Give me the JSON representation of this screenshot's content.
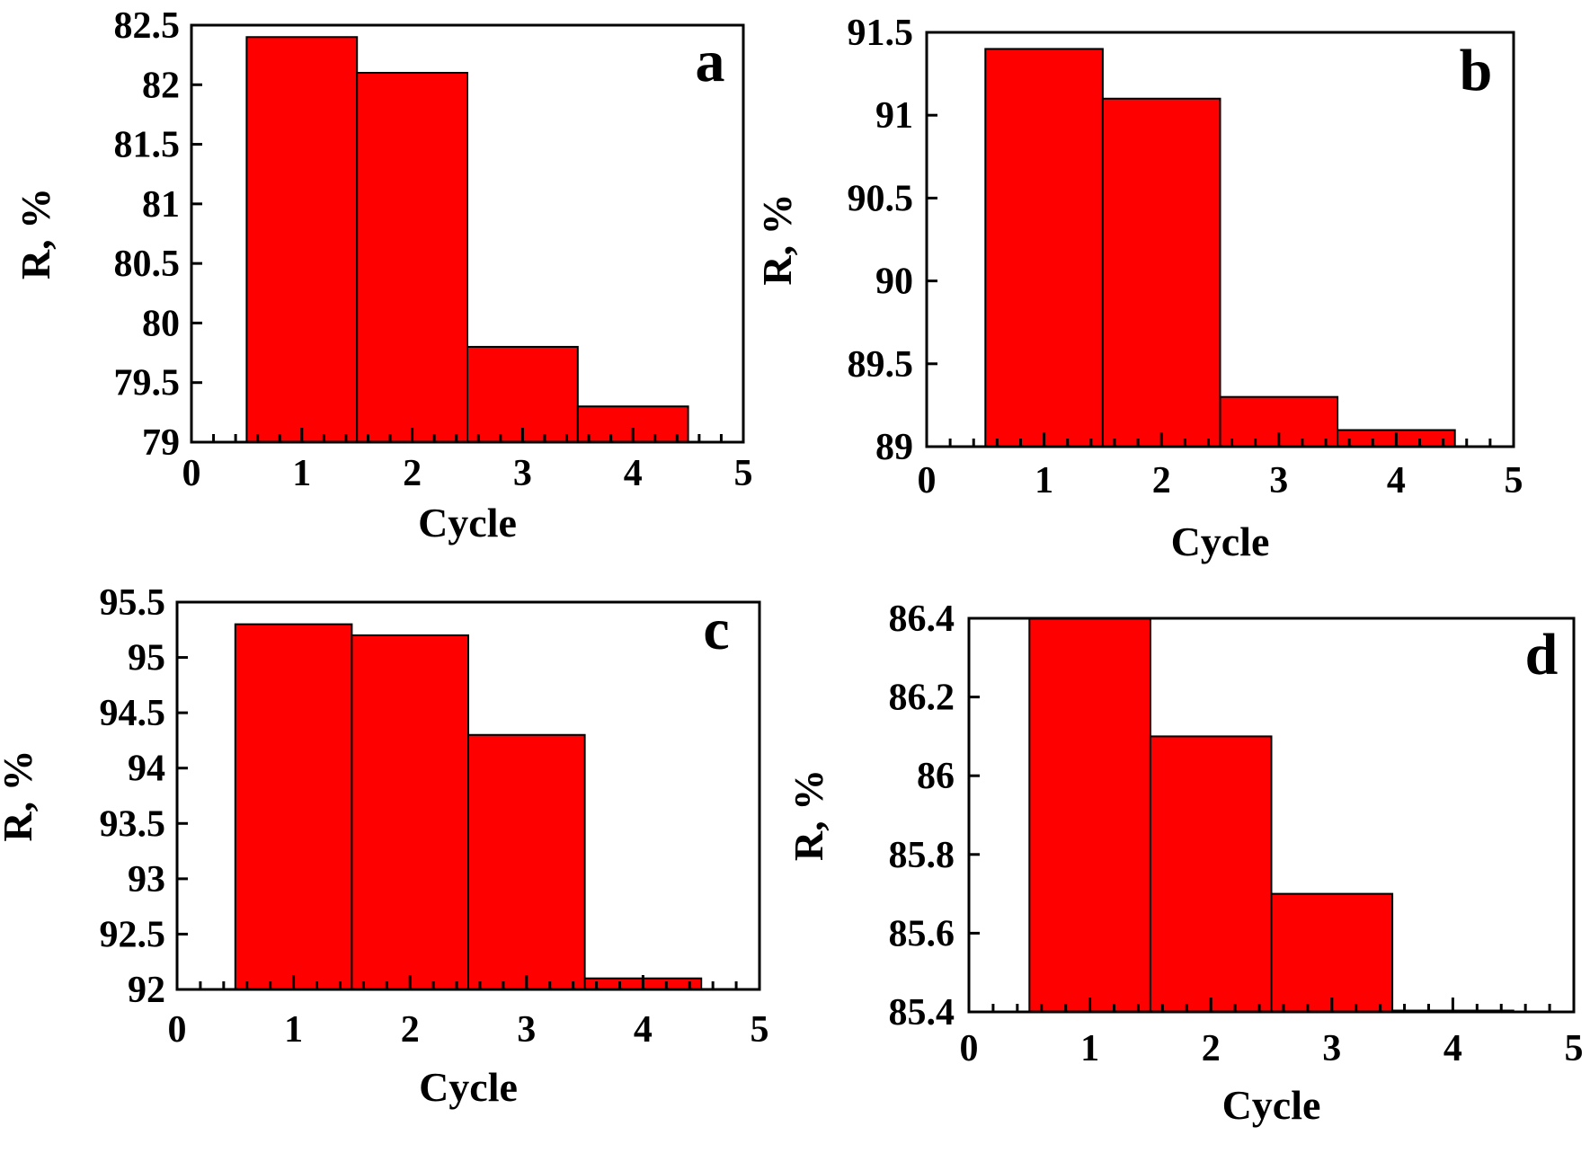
{
  "colors": {
    "bar_fill": "#ff0000",
    "bar_edge": "#000000",
    "axes": "#000000"
  },
  "chart_data": [
    {
      "type": "bar",
      "panel": "a",
      "xlabel": "Cycle",
      "ylabel": "R, %",
      "categories": [
        1,
        2,
        3,
        4
      ],
      "values": [
        82.4,
        82.1,
        79.8,
        79.3
      ],
      "xlim": [
        0,
        5
      ],
      "ylim": [
        79,
        82.5
      ],
      "xticks": [
        0,
        1,
        2,
        3,
        4,
        5
      ],
      "xtick_labels": [
        "0",
        "1",
        "2",
        "3",
        "4",
        "5"
      ],
      "yticks": [
        79,
        79.5,
        80,
        80.5,
        81,
        81.5,
        82,
        82.5
      ],
      "ytick_labels": [
        "79",
        "79.5",
        "80",
        "80.5",
        "81",
        "81.5",
        "82",
        "82.5"
      ],
      "minor_xticks_per_major": 5,
      "legend": "none",
      "grid": false
    },
    {
      "type": "bar",
      "panel": "b",
      "xlabel": "Cycle",
      "ylabel": "R, %",
      "categories": [
        1,
        2,
        3,
        4
      ],
      "values": [
        91.4,
        91.1,
        89.3,
        89.1
      ],
      "xlim": [
        0,
        5
      ],
      "ylim": [
        89,
        91.5
      ],
      "xticks": [
        0,
        1,
        2,
        3,
        4,
        5
      ],
      "xtick_labels": [
        "0",
        "1",
        "2",
        "3",
        "4",
        "5"
      ],
      "yticks": [
        89,
        89.5,
        90,
        90.5,
        91,
        91.5
      ],
      "ytick_labels": [
        "89",
        "89.5",
        "90",
        "90.5",
        "91",
        "91.5"
      ],
      "minor_xticks_per_major": 5,
      "legend": "none",
      "grid": false
    },
    {
      "type": "bar",
      "panel": "c",
      "xlabel": "Cycle",
      "ylabel": "R, %",
      "categories": [
        1,
        2,
        3,
        4
      ],
      "values": [
        95.3,
        95.2,
        94.3,
        92.1
      ],
      "xlim": [
        0,
        5
      ],
      "ylim": [
        92,
        95.5
      ],
      "xticks": [
        0,
        1,
        2,
        3,
        4,
        5
      ],
      "xtick_labels": [
        "0",
        "1",
        "2",
        "3",
        "4",
        "5"
      ],
      "yticks": [
        92,
        92.5,
        93,
        93.5,
        94,
        94.5,
        95,
        95.5
      ],
      "ytick_labels": [
        "92",
        "92.5",
        "93",
        "93.5",
        "94",
        "94.5",
        "95",
        "95.5"
      ],
      "minor_xticks_per_major": 5,
      "legend": "none",
      "grid": false
    },
    {
      "type": "bar",
      "panel": "d",
      "xlabel": "Cycle",
      "ylabel": "R, %",
      "categories": [
        1,
        2,
        3,
        4
      ],
      "values": [
        86.4,
        86.1,
        85.7,
        85.4
      ],
      "xlim": [
        0,
        5
      ],
      "ylim": [
        85.4,
        86.4
      ],
      "xticks": [
        0,
        1,
        2,
        3,
        4,
        5
      ],
      "xtick_labels": [
        "0",
        "1",
        "2",
        "3",
        "4",
        "5"
      ],
      "yticks": [
        85.4,
        85.6,
        85.8,
        86,
        86.2,
        86.4
      ],
      "ytick_labels": [
        "85.4",
        "85.6",
        "85.8",
        "86",
        "86.2",
        "86.4"
      ],
      "minor_xticks_per_major": 5,
      "legend": "none",
      "grid": false
    }
  ]
}
